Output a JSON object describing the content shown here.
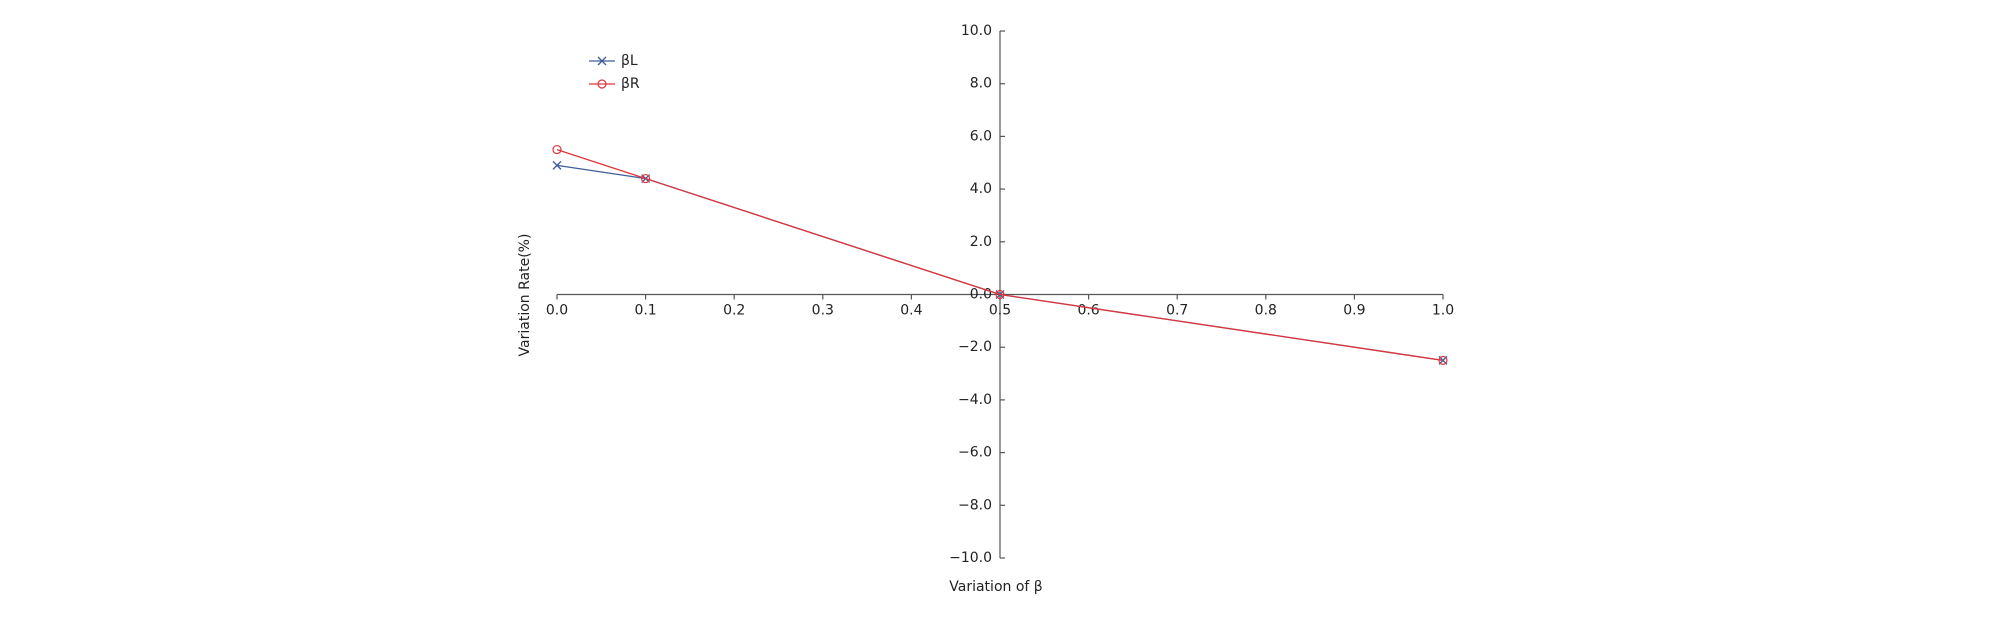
{
  "chart_data": {
    "type": "line",
    "x_label": "Variation of β",
    "y_label": "Variation Rate(%)",
    "x": [
      0,
      0.1,
      0.5,
      1.0
    ],
    "series": [
      {
        "name": "βL",
        "color": "#3d5c99",
        "marker": "x",
        "values": [
          4.9,
          4.4,
          0,
          -2.5
        ]
      },
      {
        "name": "βR",
        "color": "#e0353a",
        "marker": "circle",
        "values": [
          5.5,
          4.4,
          0,
          -2.5
        ]
      }
    ],
    "xlim": [
      0,
      1.0
    ],
    "xticks": [
      {
        "value": 0,
        "label": "0.0"
      },
      0.1,
      0.2,
      0.3,
      0.4,
      0.5,
      0.6,
      0.7,
      0.8,
      0.9,
      {
        "value": 1,
        "label": "1.0"
      }
    ],
    "ylim": [
      -10,
      10
    ],
    "yticks": [
      {
        "value": 10,
        "label": "10.0"
      },
      {
        "value": 8,
        "label": "8.0"
      },
      {
        "value": 6,
        "label": "6.0"
      },
      {
        "value": 4,
        "label": "4.0"
      },
      {
        "value": 2,
        "label": "2.0"
      },
      {
        "value": 0,
        "label": "0.0"
      },
      {
        "value": -2,
        "label": "−2.0"
      },
      {
        "value": -4,
        "label": "−4.0"
      },
      {
        "value": -6,
        "label": "−6.0"
      },
      {
        "value": -8,
        "label": "−8.0"
      },
      {
        "value": -10,
        "label": "−10.0"
      }
    ],
    "legend": "upper-left",
    "grid": false
  }
}
